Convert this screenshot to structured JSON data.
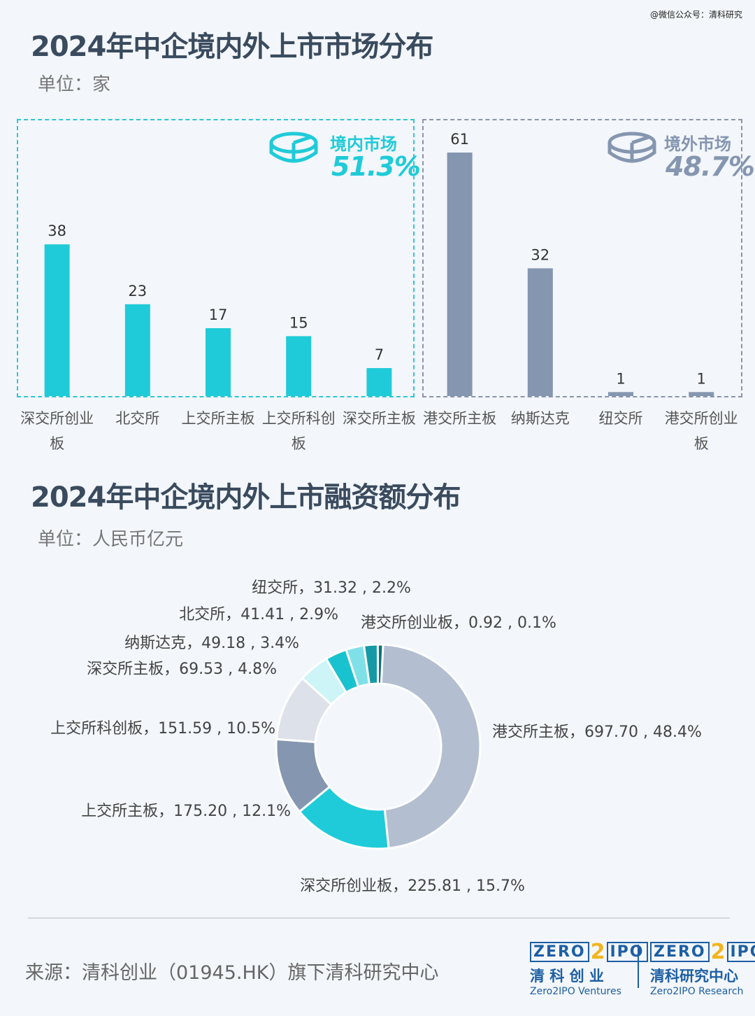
{
  "watermark": "@微信公众号：清科研究",
  "title1": "2024年中企境内外上市市场分布",
  "unit1": "单位：家",
  "domestic": {
    "name": "境内市场",
    "pct": "51.3%",
    "color": "#1fcbd8"
  },
  "foreign": {
    "name": "境外市场",
    "pct": "48.7%",
    "color": "#8596b0"
  },
  "title2": "2024年中企境内外上市融资额分布",
  "unit2": "单位：人民币亿元",
  "source": "来源：清科创业（01945.HK）旗下清科研究中心",
  "logos": [
    {
      "top_left": "ZERO",
      "num": "2",
      "top_right": "IPO",
      "cn": "清 科 创 业",
      "en": "Zero2IPO Ventures"
    },
    {
      "top_left": "ZERO",
      "num": "2",
      "top_right": "IPO",
      "cn": "清科研究中心",
      "en": "Zero2IPO Research"
    }
  ],
  "chart_data": [
    {
      "type": "bar",
      "title": "2024年中企境内外上市市场分布",
      "unit": "单位：家",
      "categories": [
        "深交所创业板",
        "北交所",
        "上交所主板",
        "上交所科创板",
        "深交所主板",
        "港交所主板",
        "纳斯达克",
        "纽交所",
        "港交所创业板"
      ],
      "category_lines": [
        [
          "深交所创业",
          "板"
        ],
        [
          "北交所"
        ],
        [
          "上交所主板"
        ],
        [
          "上交所科创",
          "板"
        ],
        [
          "深交所主板"
        ],
        [
          "港交所主板"
        ],
        [
          "纳斯达克"
        ],
        [
          "纽交所"
        ],
        [
          "港交所创业",
          "板"
        ]
      ],
      "values": [
        38,
        23,
        17,
        15,
        7,
        61,
        32,
        1,
        1
      ],
      "groups": [
        "domestic",
        "domestic",
        "domestic",
        "domestic",
        "domestic",
        "foreign",
        "foreign",
        "foreign",
        "foreign"
      ],
      "colors": {
        "domestic": "#1fcbd8",
        "foreign": "#8596b0"
      },
      "ylim": [
        0,
        61
      ],
      "grid": false
    },
    {
      "type": "pie",
      "variant": "donut",
      "title": "2024年中企境内外上市融资额分布",
      "unit": "单位：人民币亿元",
      "slices": [
        {
          "name": "港交所主板",
          "value": 697.7,
          "pct": "48.4%",
          "color": "#b3bfd0",
          "label": "港交所主板，697.70 , 48.4%"
        },
        {
          "name": "深交所创业板",
          "value": 225.81,
          "pct": "15.7%",
          "color": "#1fcbd8",
          "label": "深交所创业板，225.81 , 15.7%"
        },
        {
          "name": "上交所主板",
          "value": 175.2,
          "pct": "12.1%",
          "color": "#8596b0",
          "label": "上交所主板，175.20 , 12.1%"
        },
        {
          "name": "上交所科创板",
          "value": 151.59,
          "pct": "10.5%",
          "color": "#dde2ea",
          "label": "上交所科创板，151.59 , 10.5%"
        },
        {
          "name": "深交所主板",
          "value": 69.53,
          "pct": "4.8%",
          "color": "#cdf4f6",
          "label": "深交所主板，69.53 , 4.8%"
        },
        {
          "name": "纳斯达克",
          "value": 49.18,
          "pct": "3.4%",
          "color": "#19c2cf",
          "label": "纳斯达克，49.18 , 3.4%"
        },
        {
          "name": "北交所",
          "value": 41.41,
          "pct": "2.9%",
          "color": "#7fe0e8",
          "label": "北交所，41.41 , 2.9%"
        },
        {
          "name": "纽交所",
          "value": 31.32,
          "pct": "2.2%",
          "color": "#159aa5",
          "label": "纽交所，31.32 , 2.2%"
        },
        {
          "name": "港交所创业板",
          "value": 0.92,
          "pct": "0.1%",
          "color": "#0e6f7a",
          "label": "港交所创业板，0.92 , 0.1%"
        }
      ]
    }
  ]
}
